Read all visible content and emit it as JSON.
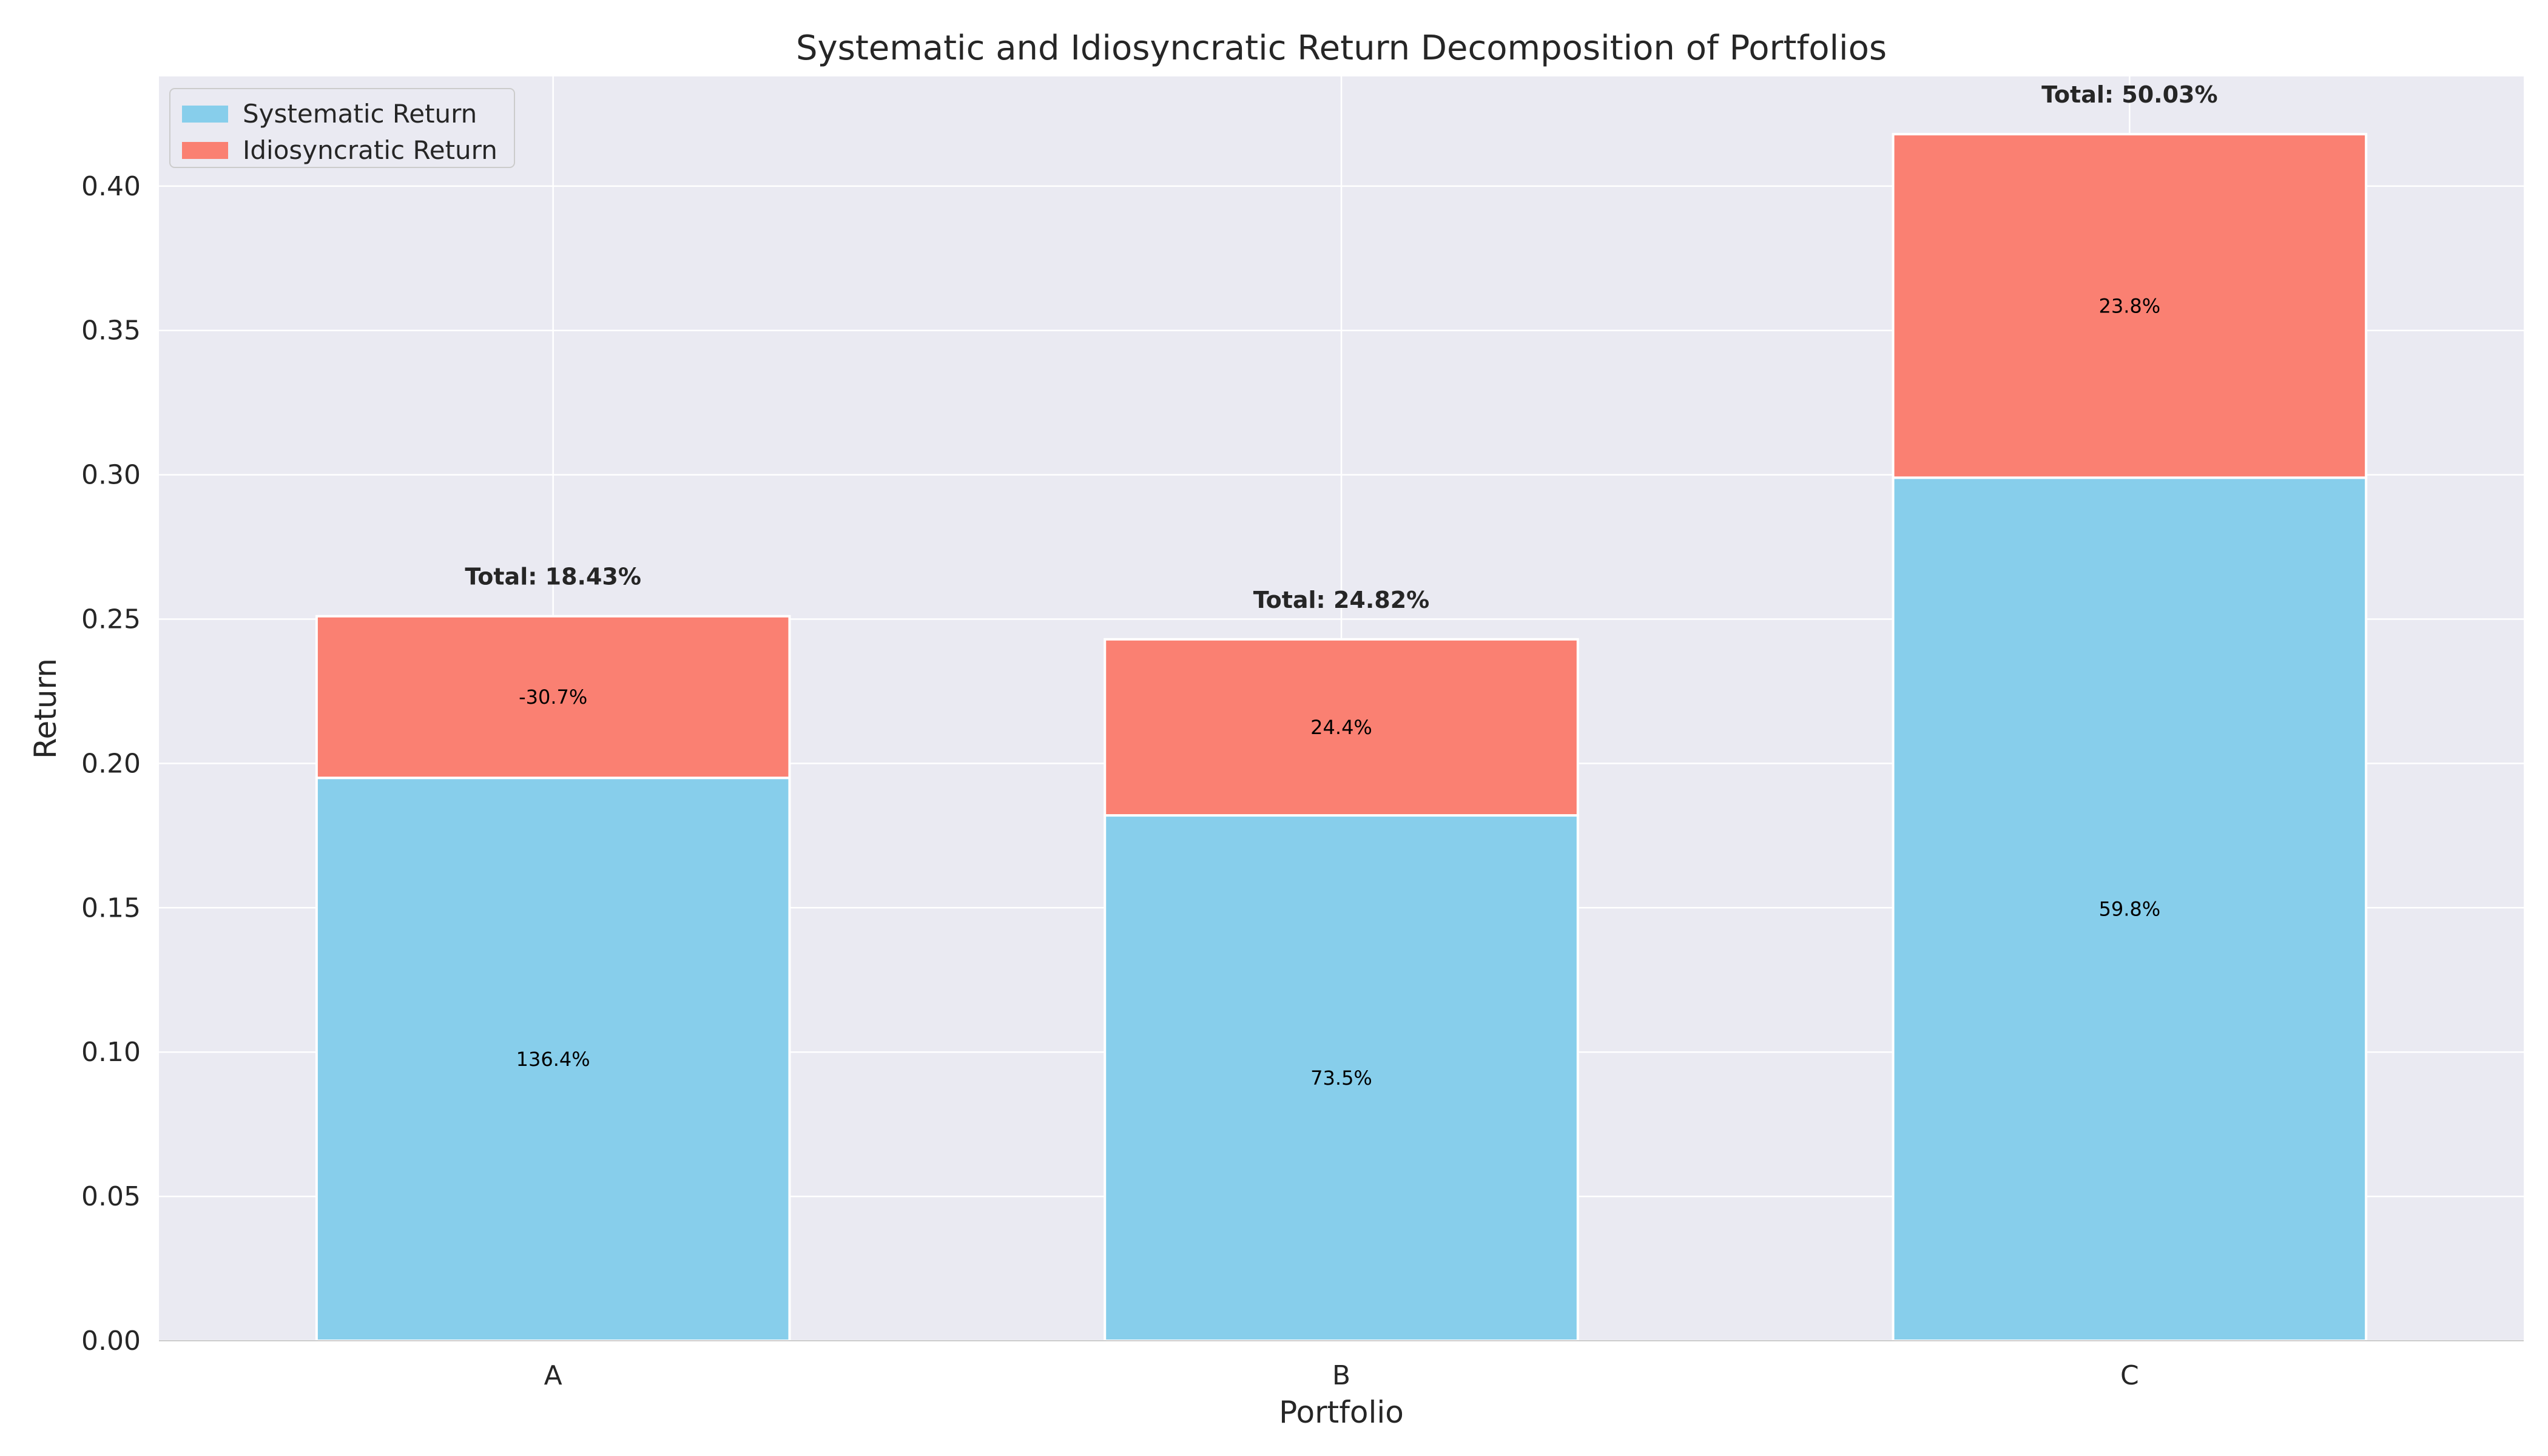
{
  "chart_data": {
    "type": "bar",
    "stacked": true,
    "title": "Systematic and Idiosyncratic Return Decomposition of Portfolios",
    "xlabel": "Portfolio",
    "ylabel": "Return",
    "categories": [
      "A",
      "B",
      "C"
    ],
    "ylim": [
      0,
      0.438
    ],
    "yticks": [
      0.0,
      0.05,
      0.1,
      0.15,
      0.2,
      0.25,
      0.3,
      0.35,
      0.4
    ],
    "ytick_labels": [
      "0.00",
      "0.05",
      "0.10",
      "0.15",
      "0.20",
      "0.25",
      "0.30",
      "0.35",
      "0.40"
    ],
    "grid": true,
    "legend_position": "top-left",
    "series": [
      {
        "name": "Systematic Return",
        "color": "#87CEEB",
        "values": [
          0.195,
          0.182,
          0.299
        ],
        "labels": [
          "136.4%",
          "73.5%",
          "59.8%"
        ]
      },
      {
        "name": "Idiosyncratic Return",
        "color": "#FA8072",
        "values": [
          0.056,
          0.061,
          0.119
        ],
        "labels": [
          "-30.7%",
          "24.4%",
          "23.8%"
        ]
      }
    ],
    "totals": [
      "Total: 18.43%",
      "Total: 24.82%",
      "Total: 50.03%"
    ],
    "background_color": "#EAEAF2",
    "grid_color": "#ffffff"
  }
}
